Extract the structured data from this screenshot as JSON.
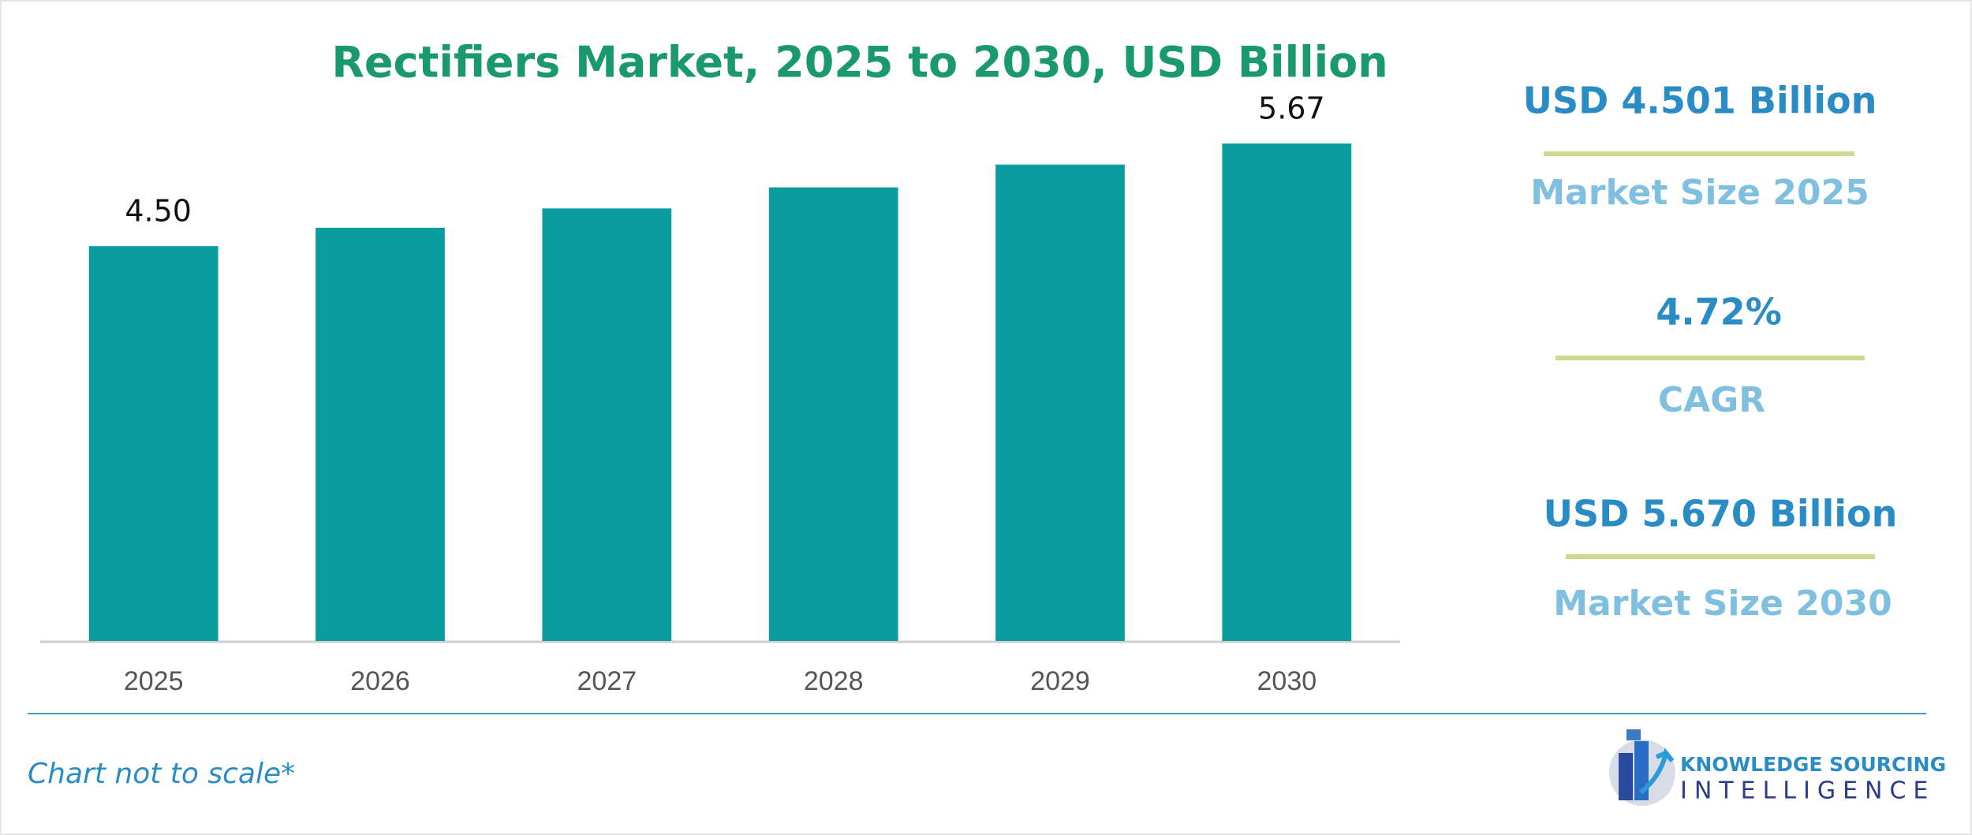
{
  "chart_data": {
    "type": "bar",
    "title": "Rectifiers Market, 2025 to 2030, USD Billion",
    "categories": [
      "2025",
      "2026",
      "2027",
      "2028",
      "2029",
      "2030"
    ],
    "values": [
      4.5,
      4.71,
      4.93,
      5.17,
      5.43,
      5.67
    ],
    "value_labels": [
      "4.50",
      null,
      null,
      null,
      null,
      "5.67"
    ],
    "color": "#0a9da0"
  },
  "stats": [
    {
      "value": "USD 4.501 Billion",
      "label": "Market Size 2025"
    },
    {
      "value": "4.72%",
      "label": "CAGR"
    },
    {
      "value": "USD 5.670 Billion",
      "label": "Market Size 2030"
    }
  ],
  "footer": {
    "note": "Chart not to scale*",
    "logo_line1": "KNOWLEDGE SOURCING",
    "logo_line2": "INTELLIGENCE"
  }
}
